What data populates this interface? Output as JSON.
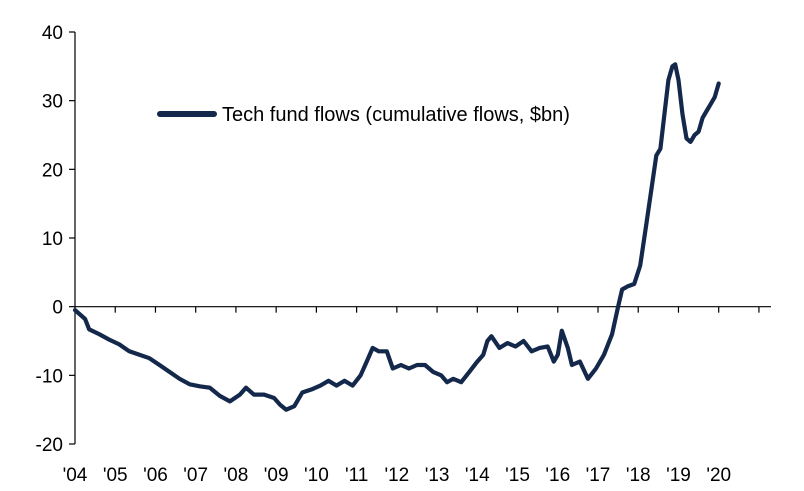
{
  "chart_data": {
    "type": "line",
    "title": "",
    "xlabel": "",
    "ylabel": "",
    "legend_position": "top-center",
    "grid": false,
    "xlim": [
      2004.0,
      2021.3
    ],
    "ylim": [
      -20,
      40
    ],
    "y_ticks": [
      "-20",
      "-10",
      "0",
      "10",
      "20",
      "30",
      "40"
    ],
    "x_tick_labels": [
      "'04",
      "'05",
      "'06",
      "'07",
      "'08",
      "'09",
      "'10",
      "'11",
      "'12",
      "'13",
      "'14",
      "'15",
      "'16",
      "'17",
      "'18",
      "'19",
      "'20"
    ],
    "series": [
      {
        "name": "Tech fund flows (cumulative flows, $bn)",
        "color": "#14284b",
        "points": [
          [
            2004.0,
            -0.5
          ],
          [
            2004.25,
            -1.8
          ],
          [
            2004.35,
            -3.3
          ],
          [
            2004.6,
            -4.0
          ],
          [
            2004.85,
            -4.8
          ],
          [
            2005.1,
            -5.5
          ],
          [
            2005.35,
            -6.5
          ],
          [
            2005.6,
            -7.0
          ],
          [
            2005.85,
            -7.5
          ],
          [
            2006.1,
            -8.5
          ],
          [
            2006.35,
            -9.5
          ],
          [
            2006.6,
            -10.5
          ],
          [
            2006.85,
            -11.3
          ],
          [
            2007.1,
            -11.6
          ],
          [
            2007.35,
            -11.8
          ],
          [
            2007.6,
            -13.0
          ],
          [
            2007.85,
            -13.8
          ],
          [
            2008.1,
            -12.8
          ],
          [
            2008.25,
            -11.8
          ],
          [
            2008.45,
            -12.8
          ],
          [
            2008.7,
            -12.8
          ],
          [
            2008.95,
            -13.3
          ],
          [
            2009.1,
            -14.3
          ],
          [
            2009.25,
            -15.0
          ],
          [
            2009.45,
            -14.5
          ],
          [
            2009.65,
            -12.5
          ],
          [
            2009.9,
            -12.0
          ],
          [
            2010.1,
            -11.5
          ],
          [
            2010.3,
            -10.8
          ],
          [
            2010.5,
            -11.5
          ],
          [
            2010.7,
            -10.8
          ],
          [
            2010.9,
            -11.5
          ],
          [
            2011.1,
            -10.0
          ],
          [
            2011.25,
            -8.0
          ],
          [
            2011.4,
            -6.0
          ],
          [
            2011.55,
            -6.5
          ],
          [
            2011.75,
            -6.5
          ],
          [
            2011.9,
            -9.0
          ],
          [
            2012.1,
            -8.5
          ],
          [
            2012.3,
            -9.0
          ],
          [
            2012.5,
            -8.5
          ],
          [
            2012.7,
            -8.5
          ],
          [
            2012.9,
            -9.5
          ],
          [
            2013.1,
            -10.0
          ],
          [
            2013.25,
            -11.0
          ],
          [
            2013.4,
            -10.5
          ],
          [
            2013.6,
            -11.0
          ],
          [
            2013.8,
            -9.5
          ],
          [
            2014.0,
            -8.0
          ],
          [
            2014.15,
            -7.0
          ],
          [
            2014.25,
            -5.0
          ],
          [
            2014.35,
            -4.3
          ],
          [
            2014.55,
            -6.0
          ],
          [
            2014.75,
            -5.3
          ],
          [
            2014.95,
            -5.8
          ],
          [
            2015.15,
            -5.0
          ],
          [
            2015.35,
            -6.5
          ],
          [
            2015.55,
            -6.0
          ],
          [
            2015.75,
            -5.8
          ],
          [
            2015.9,
            -8.0
          ],
          [
            2016.0,
            -7.0
          ],
          [
            2016.1,
            -3.5
          ],
          [
            2016.25,
            -6.0
          ],
          [
            2016.35,
            -8.5
          ],
          [
            2016.55,
            -8.0
          ],
          [
            2016.75,
            -10.5
          ],
          [
            2016.95,
            -9.0
          ],
          [
            2017.15,
            -7.0
          ],
          [
            2017.35,
            -4.0
          ],
          [
            2017.5,
            0.0
          ],
          [
            2017.6,
            2.5
          ],
          [
            2017.75,
            3.0
          ],
          [
            2017.9,
            3.3
          ],
          [
            2018.05,
            6.0
          ],
          [
            2018.2,
            12.0
          ],
          [
            2018.35,
            18.0
          ],
          [
            2018.45,
            22.0
          ],
          [
            2018.55,
            23.0
          ],
          [
            2018.65,
            28.0
          ],
          [
            2018.75,
            33.0
          ],
          [
            2018.85,
            35.0
          ],
          [
            2018.92,
            35.3
          ],
          [
            2019.0,
            33.0
          ],
          [
            2019.1,
            28.0
          ],
          [
            2019.2,
            24.5
          ],
          [
            2019.3,
            24.0
          ],
          [
            2019.4,
            25.0
          ],
          [
            2019.5,
            25.5
          ],
          [
            2019.6,
            27.5
          ],
          [
            2019.7,
            28.5
          ],
          [
            2019.8,
            29.5
          ],
          [
            2019.9,
            30.5
          ],
          [
            2020.0,
            32.5
          ]
        ]
      }
    ]
  }
}
